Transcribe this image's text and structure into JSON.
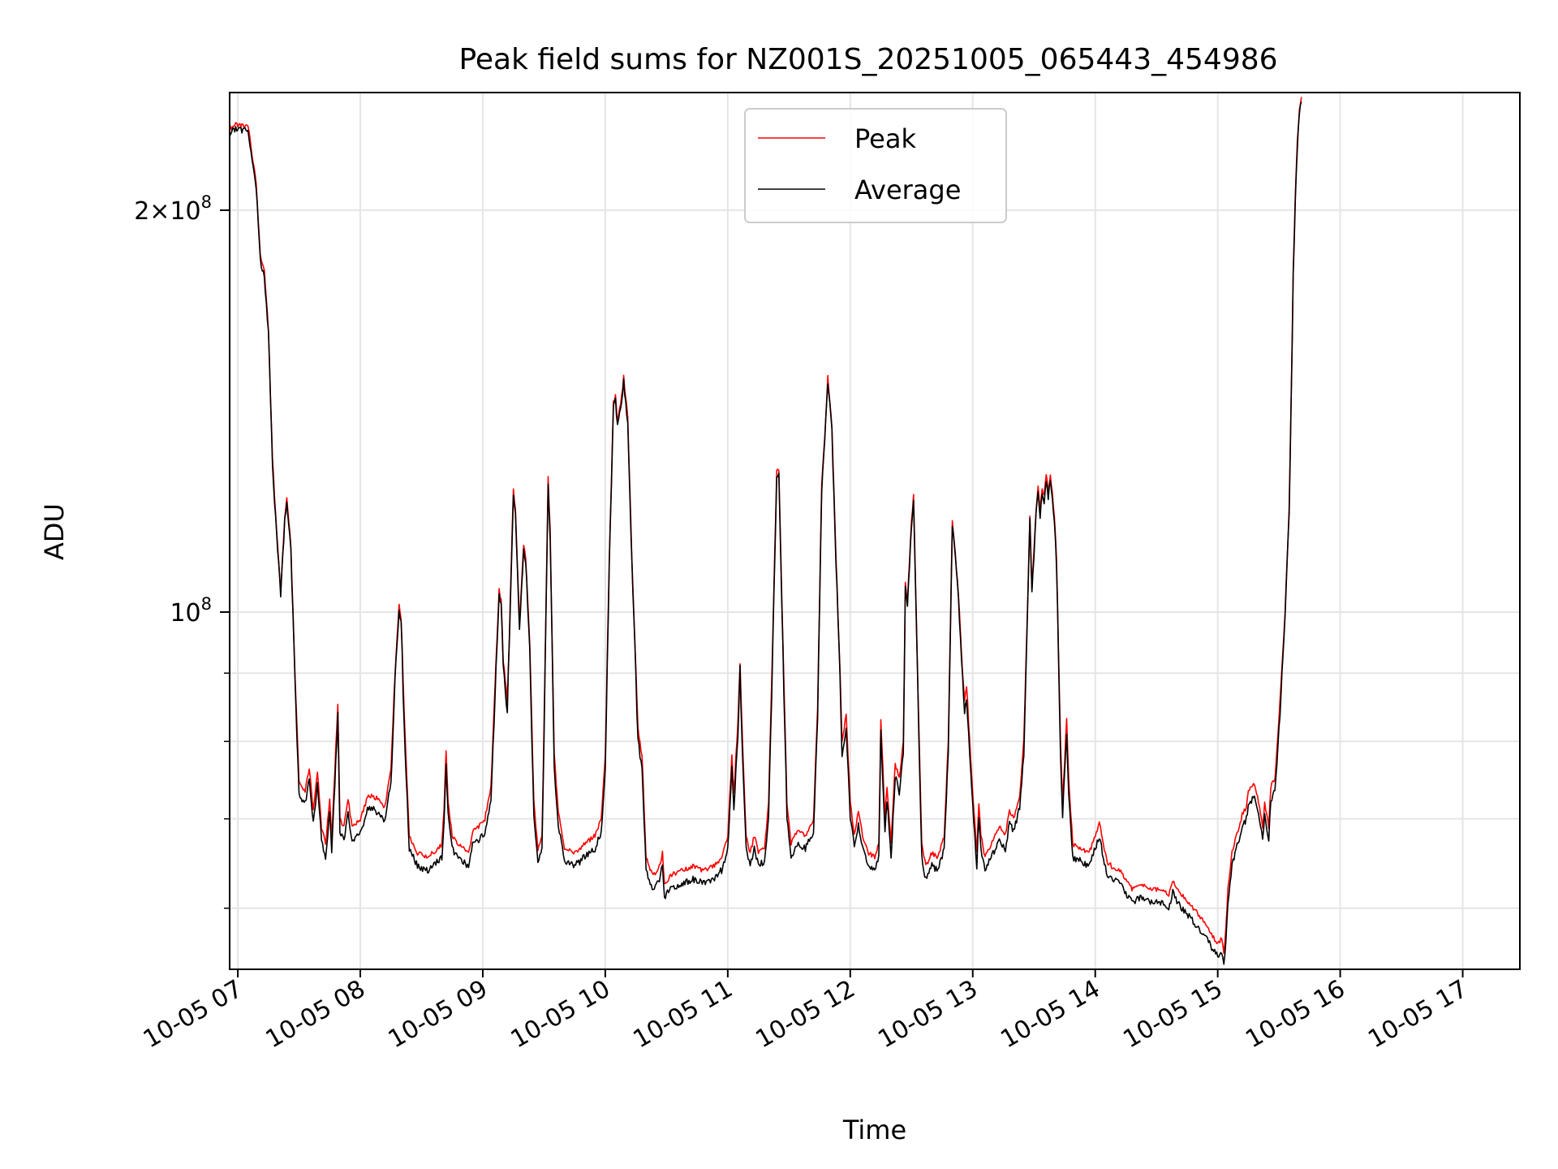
{
  "chart_data": {
    "type": "line",
    "title": "Peak field sums for NZ001S_20251005_065443_454986",
    "xlabel": "Time",
    "ylabel": "ADU",
    "y_scale": "log",
    "grid": true,
    "legend_position": "upper center",
    "xlim": [
      "2025-10-05 06:56",
      "2025-10-05 17:28"
    ],
    "ylim": [
      54000000,
      245000000
    ],
    "x_ticks": [
      "10-05 07",
      "10-05 08",
      "10-05 09",
      "10-05 10",
      "10-05 11",
      "10-05 12",
      "10-05 13",
      "10-05 14",
      "10-05 15",
      "10-05 16",
      "10-05 17"
    ],
    "y_tick_labels": [
      {
        "value": 100000000,
        "label": "10^8"
      },
      {
        "value": 200000000,
        "label": "2×10^8"
      }
    ],
    "y_minor_ticks": [
      60000000,
      70000000,
      80000000,
      90000000
    ],
    "series": [
      {
        "name": "Peak",
        "color": "#ff0000",
        "points": [
          [
            "2025-10-05 06:56",
            230000000
          ],
          [
            "2025-10-05 06:59",
            232000000
          ],
          [
            "2025-10-05 07:05",
            231000000
          ],
          [
            "2025-10-05 07:09",
            210000000
          ],
          [
            "2025-10-05 07:11",
            185000000
          ],
          [
            "2025-10-05 07:13",
            180000000
          ],
          [
            "2025-10-05 07:15",
            163000000
          ],
          [
            "2025-10-05 07:17",
            130000000
          ],
          [
            "2025-10-05 07:19",
            115000000
          ],
          [
            "2025-10-05 07:21",
            104000000
          ],
          [
            "2025-10-05 07:23",
            118000000
          ],
          [
            "2025-10-05 07:24",
            122000000
          ],
          [
            "2025-10-05 07:26",
            112000000
          ],
          [
            "2025-10-05 07:28",
            90000000
          ],
          [
            "2025-10-05 07:30",
            74500000
          ],
          [
            "2025-10-05 07:33",
            73500000
          ],
          [
            "2025-10-05 07:35",
            76500000
          ],
          [
            "2025-10-05 07:37",
            71000000
          ],
          [
            "2025-10-05 07:39",
            76000000
          ],
          [
            "2025-10-05 07:41",
            69000000
          ],
          [
            "2025-10-05 07:43",
            67000000
          ],
          [
            "2025-10-05 07:45",
            72500000
          ],
          [
            "2025-10-05 07:46",
            67500000
          ],
          [
            "2025-10-05 07:49",
            85500000
          ],
          [
            "2025-10-05 07:50",
            70000000
          ],
          [
            "2025-10-05 07:52",
            69000000
          ],
          [
            "2025-10-05 07:54",
            72500000
          ],
          [
            "2025-10-05 07:56",
            69000000
          ],
          [
            "2025-10-05 08:00",
            70000000
          ],
          [
            "2025-10-05 08:04",
            73000000
          ],
          [
            "2025-10-05 08:08",
            72500000
          ],
          [
            "2025-10-05 08:12",
            71500000
          ],
          [
            "2025-10-05 08:15",
            76000000
          ],
          [
            "2025-10-05 08:17",
            90000000
          ],
          [
            "2025-10-05 08:19",
            101500000
          ],
          [
            "2025-10-05 08:20",
            99000000
          ],
          [
            "2025-10-05 08:22",
            80000000
          ],
          [
            "2025-10-05 08:24",
            68000000
          ],
          [
            "2025-10-05 08:28",
            66000000
          ],
          [
            "2025-10-05 08:33",
            65500000
          ],
          [
            "2025-10-05 08:38",
            66500000
          ],
          [
            "2025-10-05 08:40",
            67000000
          ],
          [
            "2025-10-05 08:41",
            71000000
          ],
          [
            "2025-10-05 08:42",
            79000000
          ],
          [
            "2025-10-05 08:43",
            72000000
          ],
          [
            "2025-10-05 08:45",
            68000000
          ],
          [
            "2025-10-05 08:48",
            67000000
          ],
          [
            "2025-10-05 08:53",
            66000000
          ],
          [
            "2025-10-05 08:55",
            68500000
          ],
          [
            "2025-10-05 08:58",
            69000000
          ],
          [
            "2025-10-05 09:01",
            70000000
          ],
          [
            "2025-10-05 09:04",
            74000000
          ],
          [
            "2025-10-05 09:06",
            88000000
          ],
          [
            "2025-10-05 09:08",
            104000000
          ],
          [
            "2025-10-05 09:09",
            102000000
          ],
          [
            "2025-10-05 09:10",
            92000000
          ],
          [
            "2025-10-05 09:12",
            86000000
          ],
          [
            "2025-10-05 09:13",
            96000000
          ],
          [
            "2025-10-05 09:15",
            124000000
          ],
          [
            "2025-10-05 09:16",
            119000000
          ],
          [
            "2025-10-05 09:18",
            98000000
          ],
          [
            "2025-10-05 09:20",
            112000000
          ],
          [
            "2025-10-05 09:21",
            110000000
          ],
          [
            "2025-10-05 09:23",
            95000000
          ],
          [
            "2025-10-05 09:25",
            72000000
          ],
          [
            "2025-10-05 09:27",
            66500000
          ],
          [
            "2025-10-05 09:29",
            68000000
          ],
          [
            "2025-10-05 09:30",
            82000000
          ],
          [
            "2025-10-05 09:32",
            126000000
          ],
          [
            "2025-10-05 09:33",
            115000000
          ],
          [
            "2025-10-05 09:35",
            78000000
          ],
          [
            "2025-10-05 09:37",
            71000000
          ],
          [
            "2025-10-05 09:40",
            66500000
          ],
          [
            "2025-10-05 09:45",
            66000000
          ],
          [
            "2025-10-05 09:50",
            67000000
          ],
          [
            "2025-10-05 09:55",
            68000000
          ],
          [
            "2025-10-05 09:58",
            70000000
          ],
          [
            "2025-10-05 10:00",
            78000000
          ],
          [
            "2025-10-05 10:02",
            110000000
          ],
          [
            "2025-10-05 10:04",
            144000000
          ],
          [
            "2025-10-05 10:05",
            145000000
          ],
          [
            "2025-10-05 10:06",
            139000000
          ],
          [
            "2025-10-05 10:08",
            145000000
          ],
          [
            "2025-10-05 10:09",
            150000000
          ],
          [
            "2025-10-05 10:11",
            140000000
          ],
          [
            "2025-10-05 10:13",
            110000000
          ],
          [
            "2025-10-05 10:16",
            82000000
          ],
          [
            "2025-10-05 10:18",
            78000000
          ],
          [
            "2025-10-05 10:20",
            65500000
          ],
          [
            "2025-10-05 10:23",
            63500000
          ],
          [
            "2025-10-05 10:26",
            64000000
          ],
          [
            "2025-10-05 10:28",
            66000000
          ],
          [
            "2025-10-05 10:29",
            62500000
          ],
          [
            "2025-10-05 10:32",
            63500000
          ],
          [
            "2025-10-05 10:37",
            64000000
          ],
          [
            "2025-10-05 10:43",
            64500000
          ],
          [
            "2025-10-05 10:48",
            64000000
          ],
          [
            "2025-10-05 10:53",
            64500000
          ],
          [
            "2025-10-05 10:57",
            65500000
          ],
          [
            "2025-10-05 11:00",
            68000000
          ],
          [
            "2025-10-05 11:02",
            78000000
          ],
          [
            "2025-10-05 11:03",
            73000000
          ],
          [
            "2025-10-05 11:05",
            83000000
          ],
          [
            "2025-10-05 11:06",
            91500000
          ],
          [
            "2025-10-05 11:07",
            82000000
          ],
          [
            "2025-10-05 11:09",
            68000000
          ],
          [
            "2025-10-05 11:11",
            66000000
          ],
          [
            "2025-10-05 11:13",
            68000000
          ],
          [
            "2025-10-05 11:15",
            66000000
          ],
          [
            "2025-10-05 11:18",
            66500000
          ],
          [
            "2025-10-05 11:20",
            72000000
          ],
          [
            "2025-10-05 11:22",
            95000000
          ],
          [
            "2025-10-05 11:24",
            128000000
          ],
          [
            "2025-10-05 11:25",
            128000000
          ],
          [
            "2025-10-05 11:27",
            95000000
          ],
          [
            "2025-10-05 11:29",
            72000000
          ],
          [
            "2025-10-05 11:31",
            67000000
          ],
          [
            "2025-10-05 11:34",
            68500000
          ],
          [
            "2025-10-05 11:38",
            68000000
          ],
          [
            "2025-10-05 11:42",
            70000000
          ],
          [
            "2025-10-05 11:44",
            85000000
          ],
          [
            "2025-10-05 11:46",
            124000000
          ],
          [
            "2025-10-05 11:48",
            140000000
          ],
          [
            "2025-10-05 11:49",
            150000000
          ],
          [
            "2025-10-05 11:51",
            138000000
          ],
          [
            "2025-10-05 11:53",
            110000000
          ],
          [
            "2025-10-05 11:55",
            90000000
          ],
          [
            "2025-10-05 11:56",
            80000000
          ],
          [
            "2025-10-05 11:58",
            84000000
          ],
          [
            "2025-10-05 12:00",
            72000000
          ],
          [
            "2025-10-05 12:02",
            68000000
          ],
          [
            "2025-10-05 12:04",
            71000000
          ],
          [
            "2025-10-05 12:06",
            68000000
          ],
          [
            "2025-10-05 12:09",
            66000000
          ],
          [
            "2025-10-05 12:12",
            65500000
          ],
          [
            "2025-10-05 12:14",
            67000000
          ],
          [
            "2025-10-05 12:15",
            83000000
          ],
          [
            "2025-10-05 12:17",
            70000000
          ],
          [
            "2025-10-05 12:18",
            74000000
          ],
          [
            "2025-10-05 12:20",
            67000000
          ],
          [
            "2025-10-05 12:22",
            77000000
          ],
          [
            "2025-10-05 12:24",
            75000000
          ],
          [
            "2025-10-05 12:26",
            80000000
          ],
          [
            "2025-10-05 12:27",
            105000000
          ],
          [
            "2025-10-05 12:28",
            102000000
          ],
          [
            "2025-10-05 12:30",
            117000000
          ],
          [
            "2025-10-05 12:31",
            122000000
          ],
          [
            "2025-10-05 12:33",
            90000000
          ],
          [
            "2025-10-05 12:35",
            67000000
          ],
          [
            "2025-10-05 12:37",
            64500000
          ],
          [
            "2025-10-05 12:40",
            66000000
          ],
          [
            "2025-10-05 12:43",
            65500000
          ],
          [
            "2025-10-05 12:46",
            68000000
          ],
          [
            "2025-10-05 12:48",
            80000000
          ],
          [
            "2025-10-05 12:50",
            117000000
          ],
          [
            "2025-10-05 12:51",
            113000000
          ],
          [
            "2025-10-05 12:53",
            103000000
          ],
          [
            "2025-10-05 12:55",
            90000000
          ],
          [
            "2025-10-05 12:56",
            86000000
          ],
          [
            "2025-10-05 12:57",
            88000000
          ],
          [
            "2025-10-05 13:00",
            73000000
          ],
          [
            "2025-10-05 13:02",
            66000000
          ],
          [
            "2025-10-05 13:03",
            72000000
          ],
          [
            "2025-10-05 13:04",
            68000000
          ],
          [
            "2025-10-05 13:06",
            65500000
          ],
          [
            "2025-10-05 13:08",
            66500000
          ],
          [
            "2025-10-05 13:11",
            68000000
          ],
          [
            "2025-10-05 13:13",
            69000000
          ],
          [
            "2025-10-05 13:16",
            68000000
          ],
          [
            "2025-10-05 13:18",
            71000000
          ],
          [
            "2025-10-05 13:20",
            70000000
          ],
          [
            "2025-10-05 13:23",
            73000000
          ],
          [
            "2025-10-05 13:25",
            80000000
          ],
          [
            "2025-10-05 13:27",
            103000000
          ],
          [
            "2025-10-05 13:28",
            118000000
          ],
          [
            "2025-10-05 13:29",
            104000000
          ],
          [
            "2025-10-05 13:31",
            119000000
          ],
          [
            "2025-10-05 13:32",
            124000000
          ],
          [
            "2025-10-05 13:33",
            119000000
          ],
          [
            "2025-10-05 13:34",
            124000000
          ],
          [
            "2025-10-05 13:35",
            122000000
          ],
          [
            "2025-10-05 13:36",
            127000000
          ],
          [
            "2025-10-05 13:37",
            123000000
          ],
          [
            "2025-10-05 13:38",
            127000000
          ],
          [
            "2025-10-05 13:40",
            118000000
          ],
          [
            "2025-10-05 13:41",
            110000000
          ],
          [
            "2025-10-05 13:43",
            80000000
          ],
          [
            "2025-10-05 13:44",
            72000000
          ],
          [
            "2025-10-05 13:46",
            83000000
          ],
          [
            "2025-10-05 13:47",
            75000000
          ],
          [
            "2025-10-05 13:49",
            67000000
          ],
          [
            "2025-10-05 13:53",
            66500000
          ],
          [
            "2025-10-05 13:57",
            66000000
          ],
          [
            "2025-10-05 14:00",
            68000000
          ],
          [
            "2025-10-05 14:02",
            69500000
          ],
          [
            "2025-10-05 14:04",
            67000000
          ],
          [
            "2025-10-05 14:06",
            65000000
          ],
          [
            "2025-10-05 14:08",
            64500000
          ],
          [
            "2025-10-05 14:12",
            64000000
          ],
          [
            "2025-10-05 14:15",
            63000000
          ],
          [
            "2025-10-05 14:18",
            62000000
          ],
          [
            "2025-10-05 14:23",
            62500000
          ],
          [
            "2025-10-05 14:28",
            62000000
          ],
          [
            "2025-10-05 14:33",
            62000000
          ],
          [
            "2025-10-05 14:36",
            61500000
          ],
          [
            "2025-10-05 14:38",
            63000000
          ],
          [
            "2025-10-05 14:40",
            62000000
          ],
          [
            "2025-10-05 14:44",
            61000000
          ],
          [
            "2025-10-05 14:48",
            60000000
          ],
          [
            "2025-10-05 14:52",
            59000000
          ],
          [
            "2025-10-05 14:55",
            58000000
          ],
          [
            "2025-10-05 14:58",
            57000000
          ],
          [
            "2025-10-05 15:00",
            56500000
          ],
          [
            "2025-10-05 15:02",
            57000000
          ],
          [
            "2025-10-05 15:03",
            55500000
          ],
          [
            "2025-10-05 15:04",
            58000000
          ],
          [
            "2025-10-05 15:05",
            62000000
          ],
          [
            "2025-10-05 15:07",
            66000000
          ],
          [
            "2025-10-05 15:09",
            68000000
          ],
          [
            "2025-10-05 15:11",
            69500000
          ],
          [
            "2025-10-05 15:12",
            70500000
          ],
          [
            "2025-10-05 15:14",
            71500000
          ],
          [
            "2025-10-05 15:15",
            73500000
          ],
          [
            "2025-10-05 15:17",
            74000000
          ],
          [
            "2025-10-05 15:18",
            74500000
          ],
          [
            "2025-10-05 15:20",
            72000000
          ],
          [
            "2025-10-05 15:22",
            69000000
          ],
          [
            "2025-10-05 15:23",
            72000000
          ],
          [
            "2025-10-05 15:25",
            69000000
          ],
          [
            "2025-10-05 15:26",
            74000000
          ],
          [
            "2025-10-05 15:28",
            75000000
          ],
          [
            "2025-10-05 15:29",
            79000000
          ],
          [
            "2025-10-05 15:31",
            88000000
          ],
          [
            "2025-10-05 15:33",
            100000000
          ],
          [
            "2025-10-05 15:35",
            120000000
          ],
          [
            "2025-10-05 15:36",
            145000000
          ],
          [
            "2025-10-05 15:37",
            180000000
          ],
          [
            "2025-10-05 15:38",
            205000000
          ],
          [
            "2025-10-05 15:39",
            225000000
          ],
          [
            "2025-10-05 15:40",
            238000000
          ],
          [
            "2025-10-05 15:41",
            244000000
          ]
        ]
      },
      {
        "name": "Average",
        "color": "#000000"
      }
    ]
  }
}
